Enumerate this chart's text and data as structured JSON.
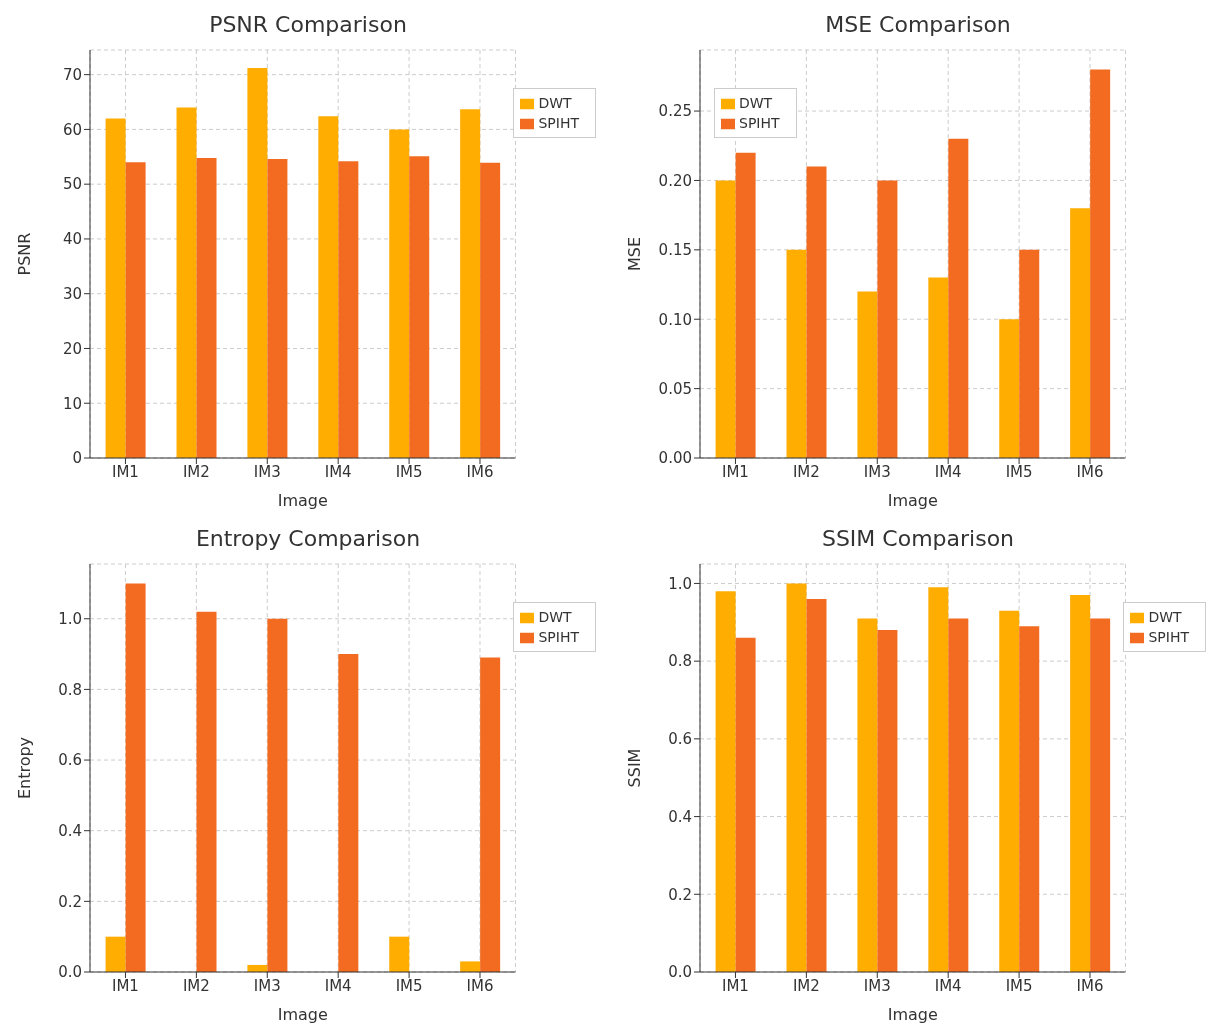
{
  "chart_data": [
    {
      "type": "bar",
      "title": "PSNR Comparison",
      "xlabel": "Image",
      "ylabel": "PSNR",
      "categories": [
        "IM1",
        "IM2",
        "IM3",
        "IM4",
        "IM5",
        "IM6"
      ],
      "series": [
        {
          "name": "DWT",
          "color": "#ffad00",
          "values": [
            62,
            64,
            71.2,
            62.4,
            60,
            63.7
          ]
        },
        {
          "name": "SPIHT",
          "color": "#f26b21",
          "values": [
            54,
            54.8,
            54.6,
            54.2,
            55.1,
            53.9
          ]
        }
      ],
      "ylim": [
        0,
        74.5
      ],
      "yticks": [
        0,
        10,
        20,
        30,
        40,
        50,
        60,
        70
      ],
      "grid": true,
      "legend": "top right"
    },
    {
      "type": "bar",
      "title": "MSE Comparison",
      "xlabel": "Image",
      "ylabel": "MSE",
      "categories": [
        "IM1",
        "IM2",
        "IM3",
        "IM4",
        "IM5",
        "IM6"
      ],
      "series": [
        {
          "name": "DWT",
          "color": "#ffad00",
          "values": [
            0.2,
            0.15,
            0.12,
            0.13,
            0.1,
            0.18
          ]
        },
        {
          "name": "SPIHT",
          "color": "#f26b21",
          "values": [
            0.22,
            0.21,
            0.2,
            0.23,
            0.15,
            0.28
          ]
        }
      ],
      "ylim": [
        0,
        0.294
      ],
      "yticks": [
        {
          "value": 0,
          "label": "0.00"
        },
        {
          "value": 0.05,
          "label": "0.05"
        },
        {
          "value": 0.1,
          "label": "0.10"
        },
        {
          "value": 0.15,
          "label": "0.15"
        },
        {
          "value": 0.2,
          "label": "0.20"
        },
        {
          "value": 0.25,
          "label": "0.25"
        }
      ],
      "grid": true,
      "legend": "top left"
    },
    {
      "type": "bar",
      "title": "Entropy Comparison",
      "xlabel": "Image",
      "ylabel": "Entropy",
      "categories": [
        "IM1",
        "IM2",
        "IM3",
        "IM4",
        "IM5",
        "IM6"
      ],
      "series": [
        {
          "name": "DWT",
          "color": "#ffad00",
          "values": [
            0.1,
            0,
            0.02,
            0,
            0.1,
            0.03
          ]
        },
        {
          "name": "SPIHT",
          "color": "#f26b21",
          "values": [
            1.1,
            1.02,
            1.0,
            0.9,
            0,
            0.89
          ]
        }
      ],
      "ylim": [
        0,
        1.155
      ],
      "yticks": [
        {
          "value": 0,
          "label": "0.0"
        },
        {
          "value": 0.2,
          "label": "0.2"
        },
        {
          "value": 0.4,
          "label": "0.4"
        },
        {
          "value": 0.6,
          "label": "0.6"
        },
        {
          "value": 0.8,
          "label": "0.8"
        },
        {
          "value": 1,
          "label": "1.0"
        }
      ],
      "grid": true,
      "legend": "top right"
    },
    {
      "type": "bar",
      "title": "SSIM Comparison",
      "xlabel": "Image",
      "ylabel": "SSIM",
      "categories": [
        "IM1",
        "IM2",
        "IM3",
        "IM4",
        "IM5",
        "IM6"
      ],
      "series": [
        {
          "name": "DWT",
          "color": "#ffad00",
          "values": [
            0.98,
            1.0,
            0.91,
            0.99,
            0.93,
            0.97
          ]
        },
        {
          "name": "SPIHT",
          "color": "#f26b21",
          "values": [
            0.86,
            0.96,
            0.88,
            0.91,
            0.89,
            0.91
          ]
        }
      ],
      "ylim": [
        0,
        1.05
      ],
      "yticks": [
        {
          "value": 0,
          "label": "0.0"
        },
        {
          "value": 0.2,
          "label": "0.2"
        },
        {
          "value": 0.4,
          "label": "0.4"
        },
        {
          "value": 0.6,
          "label": "0.6"
        },
        {
          "value": 0.8,
          "label": "0.8"
        },
        {
          "value": 1,
          "label": "1.0"
        }
      ],
      "grid": true,
      "legend": "top right"
    }
  ]
}
